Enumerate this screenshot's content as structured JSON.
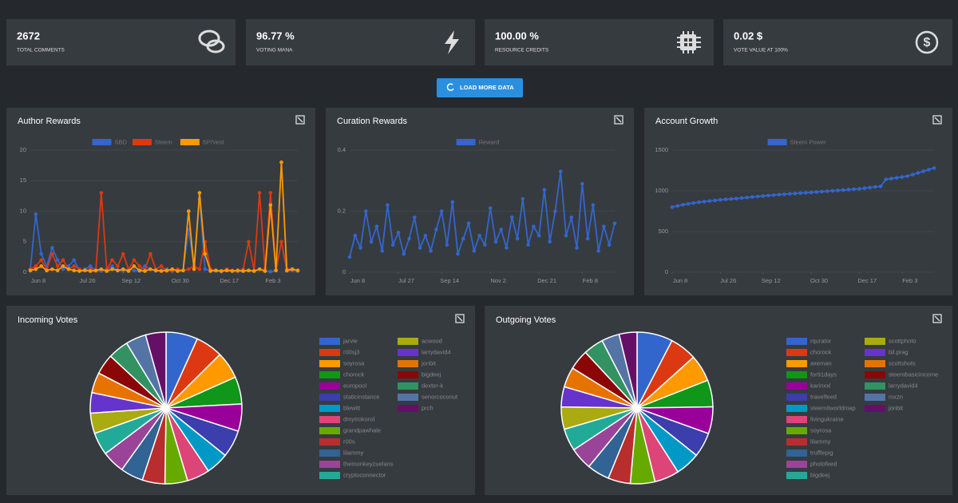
{
  "stats": [
    {
      "value": "2672",
      "label": "TOTAL COMMENTS"
    },
    {
      "value": "96.77 %",
      "label": "VOTING MANA"
    },
    {
      "value": "100.00 %",
      "label": "RESOURCE CREDITS"
    },
    {
      "value": "0.02 $",
      "label": "VOTE VALUE AT 100%"
    }
  ],
  "button": "LOAD MORE DATA",
  "chart_data": [
    {
      "type": "line",
      "title": "Author Rewards",
      "ylim": [
        0,
        20
      ],
      "yticks": [
        0,
        5,
        10,
        15,
        20
      ],
      "xlim": [
        0,
        49
      ],
      "xticks": [
        {
          "value": 0,
          "label": "Jun 8"
        },
        {
          "value": 9,
          "label": "Jul 26"
        },
        {
          "value": 17,
          "label": "Sep 12"
        },
        {
          "value": 26,
          "label": "Oct 30"
        },
        {
          "value": 35,
          "label": "Dec 17"
        },
        {
          "value": 43,
          "label": "Feb 3"
        }
      ],
      "series": [
        {
          "name": "SBD",
          "color": "#3366cc",
          "values": [
            0.5,
            9.5,
            3,
            1,
            4,
            2,
            0.5,
            1,
            2,
            0.3,
            0.5,
            1,
            0.3,
            0.2,
            0.5,
            1,
            0.3,
            0.2,
            0.5,
            0.3,
            0.2,
            1,
            0.5,
            0.2,
            0.3,
            0.5,
            0.2,
            0.5,
            0.3,
            7,
            1,
            12,
            0.5,
            0.3,
            0.2,
            0.1,
            0.3,
            0.2,
            0.1,
            0.2,
            0.3,
            0.2,
            0.5,
            0.2,
            0.1,
            0.3,
            5,
            0.2,
            0.3,
            0.2
          ]
        },
        {
          "name": "Steem",
          "color": "#dc3912",
          "values": [
            0.5,
            1,
            2,
            0.5,
            3,
            1,
            2,
            0.5,
            1,
            0.5,
            0.3,
            0.5,
            0.2,
            13,
            0.5,
            2,
            1,
            3,
            0.5,
            2,
            1,
            0.5,
            3,
            0.5,
            1,
            0.2,
            0.3,
            0.5,
            0.3,
            0.5,
            1,
            0.5,
            5,
            0.5,
            0.3,
            0.2,
            0.5,
            0.3,
            0.2,
            0.5,
            5,
            0.3,
            13,
            0.5,
            13,
            0.3,
            5,
            0.5,
            0.5,
            0.3
          ]
        },
        {
          "name": "SP/Vest",
          "color": "#ff9900",
          "values": [
            0.3,
            0.5,
            1,
            0.3,
            0.5,
            0.3,
            1,
            0.5,
            0.3,
            0.2,
            0.3,
            0.2,
            0.3,
            0.5,
            0.2,
            0.5,
            0.3,
            0.5,
            0.2,
            1,
            0.3,
            0.2,
            0.5,
            0.3,
            0.2,
            0.3,
            0.5,
            0.2,
            0.3,
            10,
            0.5,
            13,
            3,
            0.2,
            0.3,
            0.2,
            0.3,
            0.2,
            0.3,
            0.2,
            0.3,
            0.2,
            0.5,
            0.2,
            11,
            0.3,
            18,
            0.3,
            0.5,
            0.3
          ]
        }
      ]
    },
    {
      "type": "line",
      "title": "Curation Rewards",
      "ylim": [
        0,
        0.4
      ],
      "yticks": [
        0,
        0.2,
        0.4
      ],
      "xlim": [
        0,
        49
      ],
      "xticks": [
        {
          "value": 0,
          "label": "Jun 8"
        },
        {
          "value": 9,
          "label": "Jul 27"
        },
        {
          "value": 17,
          "label": "Sep 14"
        },
        {
          "value": 26,
          "label": "Nov 2"
        },
        {
          "value": 35,
          "label": "Dec 21"
        },
        {
          "value": 43,
          "label": "Feb 8"
        }
      ],
      "series": [
        {
          "name": "Reward",
          "color": "#3366cc",
          "values": [
            0.05,
            0.12,
            0.08,
            0.2,
            0.1,
            0.15,
            0.07,
            0.22,
            0.09,
            0.13,
            0.06,
            0.11,
            0.18,
            0.08,
            0.12,
            0.07,
            0.14,
            0.2,
            0.09,
            0.23,
            0.06,
            0.11,
            0.16,
            0.07,
            0.12,
            0.09,
            0.21,
            0.1,
            0.14,
            0.08,
            0.18,
            0.11,
            0.24,
            0.09,
            0.15,
            0.12,
            0.27,
            0.1,
            0.2,
            0.33,
            0.12,
            0.18,
            0.08,
            0.29,
            0.11,
            0.22,
            0.07,
            0.15,
            0.09,
            0.16
          ]
        }
      ]
    },
    {
      "type": "line",
      "title": "Account Growth",
      "ylim": [
        0,
        1500
      ],
      "yticks": [
        0,
        500,
        1000,
        1500
      ],
      "xlim": [
        0,
        49
      ],
      "xticks": [
        {
          "value": 0,
          "label": "Jun 8"
        },
        {
          "value": 9,
          "label": "Jul 26"
        },
        {
          "value": 17,
          "label": "Sep 12"
        },
        {
          "value": 26,
          "label": "Oct 30"
        },
        {
          "value": 35,
          "label": "Dec 17"
        },
        {
          "value": 43,
          "label": "Feb 3"
        }
      ],
      "series": [
        {
          "name": "Steem Power",
          "color": "#3366cc",
          "values": [
            800,
            815,
            830,
            840,
            850,
            860,
            868,
            875,
            882,
            890,
            895,
            900,
            905,
            912,
            918,
            925,
            930,
            936,
            942,
            948,
            953,
            958,
            963,
            968,
            972,
            976,
            980,
            985,
            990,
            995,
            1000,
            1005,
            1010,
            1015,
            1020,
            1025,
            1032,
            1040,
            1048,
            1055,
            1140,
            1150,
            1160,
            1170,
            1180,
            1200,
            1220,
            1240,
            1260,
            1280
          ]
        }
      ]
    },
    {
      "type": "pie",
      "title": "Incoming Votes",
      "categories": [
        "jarvie",
        "r00sj3",
        "soyrosa",
        "chorock",
        "europool",
        "staticinstance",
        "blewitt",
        "dmytrokorol",
        "grandpawhale",
        "r00s",
        "lilammy",
        "themonkeyzuelans",
        "cryptoconnector",
        "acwood",
        "larrydavid4",
        "jonbit",
        "bigdeej",
        "dexter-k",
        "senorcoconut",
        "prch"
      ],
      "values": [
        7,
        6,
        6,
        6,
        6,
        6,
        5,
        5,
        5,
        5,
        5,
        5,
        5,
        4.5,
        4.5,
        4.5,
        4.5,
        4.5,
        4.5,
        4.5
      ],
      "colors": [
        "#3366cc",
        "#dc3912",
        "#ff9900",
        "#109618",
        "#990099",
        "#3b3eac",
        "#0099c6",
        "#dd4477",
        "#66aa00",
        "#b82e2e",
        "#316395",
        "#994499",
        "#22aa99",
        "#aaaa11",
        "#6633cc",
        "#e67300",
        "#8b0707",
        "#329262",
        "#5574a6",
        "#651067"
      ]
    },
    {
      "type": "pie",
      "title": "Outgoing Votes",
      "categories": [
        "rqurator",
        "chorock",
        "axeman",
        "for91days",
        "karinxxl",
        "travelfeed",
        "steemitworldmap",
        "livingukraine",
        "soyrosa",
        "lilammy",
        "trufflepig",
        "photofeed",
        "bigdeej",
        "scottphoto",
        "bil.prag",
        "scottshots",
        "steembasicincome",
        "larrydavid4",
        "mxzn",
        "jonbit"
      ],
      "values": [
        8,
        6,
        6,
        6,
        6,
        5.5,
        5.5,
        5.5,
        5.5,
        5,
        5,
        5,
        5,
        5,
        4.5,
        4.5,
        4.5,
        4.5,
        4,
        4
      ],
      "colors": [
        "#3366cc",
        "#dc3912",
        "#ff9900",
        "#109618",
        "#990099",
        "#3b3eac",
        "#0099c6",
        "#dd4477",
        "#66aa00",
        "#b82e2e",
        "#316395",
        "#994499",
        "#22aa99",
        "#aaaa11",
        "#6633cc",
        "#e67300",
        "#8b0707",
        "#329262",
        "#5574a6",
        "#651067"
      ]
    }
  ]
}
